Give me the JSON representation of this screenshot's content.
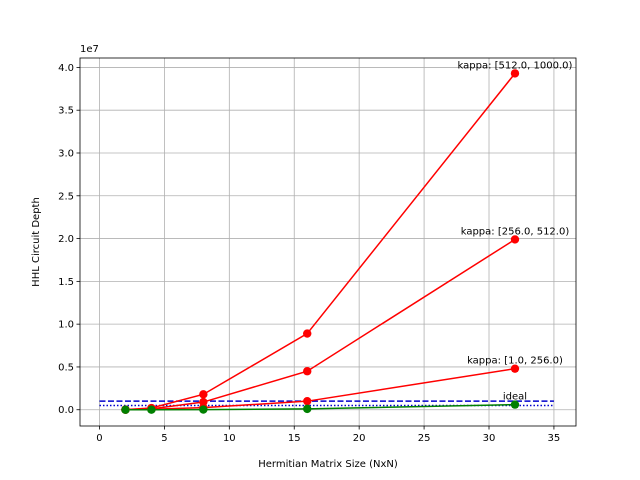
{
  "chart_data": {
    "type": "line",
    "title": "",
    "xlabel": "Hermitian Matrix Size (NxN)",
    "ylabel": "HHL Circuit Depth",
    "y_offset_text": "1e7",
    "y_scale": 10000000,
    "xlim": [
      -1.5,
      36.7
    ],
    "ylim": [
      -0.19,
      4.11
    ],
    "xticks": [
      0,
      5,
      10,
      15,
      20,
      25,
      30,
      35
    ],
    "xtick_labels": [
      "0",
      "5",
      "10",
      "15",
      "20",
      "25",
      "30",
      "35"
    ],
    "yticks": [
      0.0,
      0.5,
      1.0,
      1.5,
      2.0,
      2.5,
      3.0,
      3.5,
      4.0
    ],
    "ytick_labels": [
      "0.0",
      "0.5",
      "1.0",
      "1.5",
      "2.0",
      "2.5",
      "3.0",
      "3.5",
      "4.0"
    ],
    "grid": true,
    "series": [
      {
        "color": "#ff0000",
        "marker": "o",
        "x": [
          2,
          4,
          8,
          16,
          32
        ],
        "y": [
          0.002,
          0.02,
          0.18,
          0.89,
          3.93
        ]
      },
      {
        "color": "#ff0000",
        "marker": "o",
        "x": [
          2,
          4,
          8,
          16,
          32
        ],
        "y": [
          0.001,
          0.01,
          0.09,
          0.45,
          1.99
        ]
      },
      {
        "color": "#ff0000",
        "marker": "o",
        "x": [
          2,
          4,
          8,
          16,
          32
        ],
        "y": [
          0.0005,
          0.005,
          0.025,
          0.1,
          0.48
        ]
      },
      {
        "color": "#008000",
        "marker": "o",
        "x": [
          2,
          4,
          8,
          16,
          32
        ],
        "y": [
          0.0001,
          0.0005,
          0.002,
          0.01,
          0.06
        ]
      }
    ],
    "hlines": [
      {
        "y": 0.1,
        "color": "#0000cc",
        "style": "dashed"
      },
      {
        "y": 0.05,
        "color": "#0000cc",
        "style": "dotted"
      }
    ],
    "annotations": [
      {
        "text": "kappa: [512.0, 1000.0)",
        "x": 32,
        "y": 3.93
      },
      {
        "text": "kappa: [256.0, 512.0)",
        "x": 32,
        "y": 1.99
      },
      {
        "text": "kappa: [1.0, 256.0)",
        "x": 32,
        "y": 0.48
      },
      {
        "text": "ideal",
        "x": 32,
        "y": 0.06
      }
    ]
  }
}
